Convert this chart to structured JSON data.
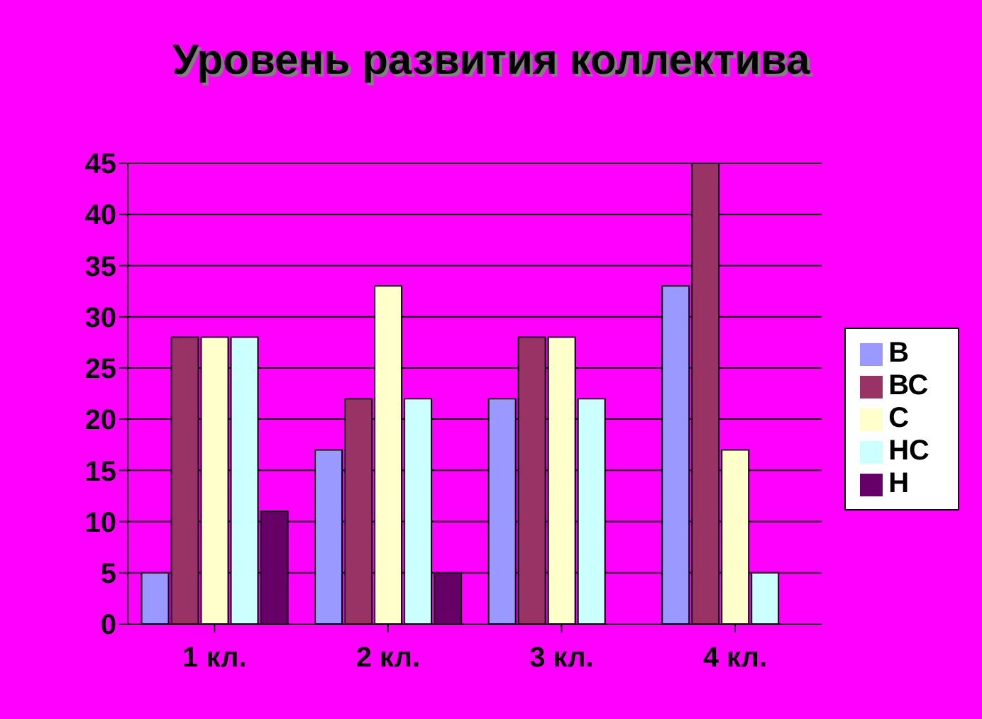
{
  "chart_data": {
    "type": "bar",
    "title": "Уровень развития коллектива",
    "categories": [
      "1 кл.",
      "2 кл.",
      "3 кл.",
      "4 кл."
    ],
    "series": [
      {
        "name": "В",
        "color": "#9999ff",
        "values": [
          5,
          17,
          22,
          33
        ]
      },
      {
        "name": "ВС",
        "color": "#993366",
        "values": [
          28,
          22,
          28,
          45
        ]
      },
      {
        "name": "С",
        "color": "#ffffcc",
        "values": [
          28,
          33,
          28,
          17
        ]
      },
      {
        "name": "НС",
        "color": "#ccffff",
        "values": [
          28,
          22,
          22,
          5
        ]
      },
      {
        "name": "Н",
        "color": "#660066",
        "values": [
          11,
          5,
          0,
          0
        ]
      }
    ],
    "ylim": [
      0,
      45
    ],
    "yticks": [
      0,
      5,
      10,
      15,
      20,
      25,
      30,
      35,
      40,
      45
    ],
    "grid": "y",
    "legend": "right"
  }
}
